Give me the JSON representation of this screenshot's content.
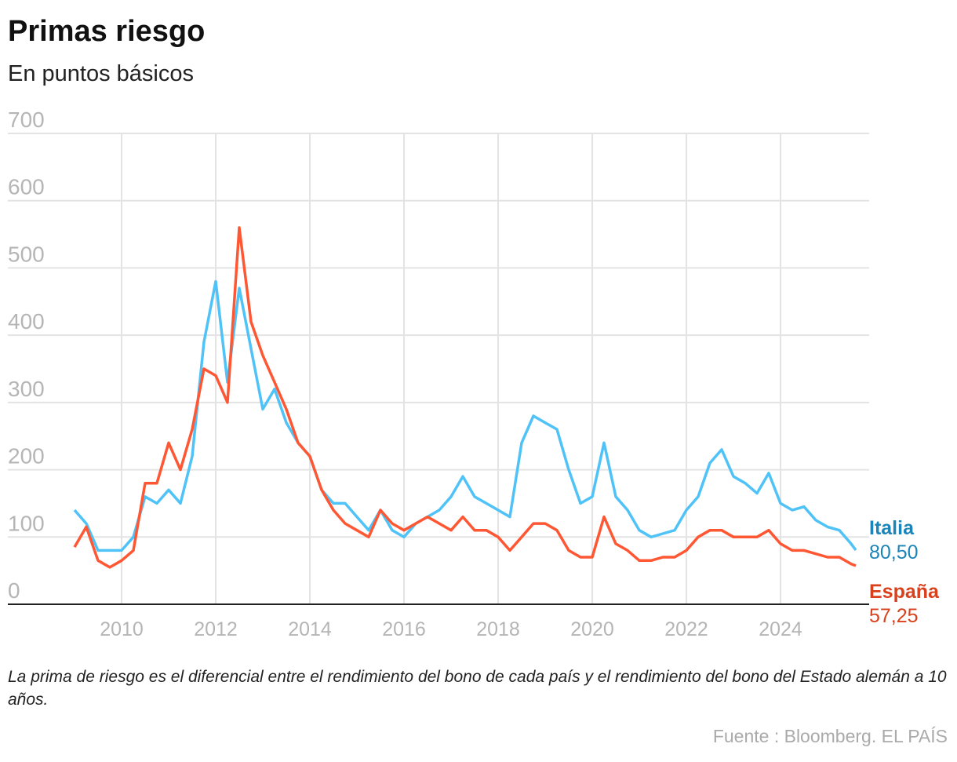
{
  "chart_data": {
    "type": "line",
    "title": "Primas riesgo",
    "subtitle": "En puntos básicos",
    "note": "La prima de riesgo es el diferencial entre el rendimiento del bono de cada país y el rendimiento del bono del Estado alemán a 10 años.",
    "source": "Fuente : Bloomberg. EL PAÍS",
    "x": [
      2009,
      2009.25,
      2009.5,
      2009.75,
      2010,
      2010.25,
      2010.5,
      2010.75,
      2011,
      2011.25,
      2011.5,
      2011.75,
      2012,
      2012.25,
      2012.5,
      2012.75,
      2013,
      2013.25,
      2013.5,
      2013.75,
      2014,
      2014.25,
      2014.5,
      2014.75,
      2015,
      2015.25,
      2015.5,
      2015.75,
      2016,
      2016.25,
      2016.5,
      2016.75,
      2017,
      2017.25,
      2017.5,
      2017.75,
      2018,
      2018.25,
      2018.5,
      2018.75,
      2019,
      2019.25,
      2019.5,
      2019.75,
      2020,
      2020.25,
      2020.5,
      2020.75,
      2021,
      2021.25,
      2021.5,
      2021.75,
      2022,
      2022.25,
      2022.5,
      2022.75,
      2023,
      2023.25,
      2023.5,
      2023.75,
      2024,
      2024.25,
      2024.5,
      2024.75,
      2025,
      2025.25,
      2025.5,
      2025.6
    ],
    "series": [
      {
        "name": "Italia",
        "color": "#4fc3f7",
        "label_color": "#1b84b8",
        "values": [
          140,
          120,
          80,
          80,
          80,
          100,
          160,
          150,
          170,
          150,
          220,
          390,
          480,
          330,
          470,
          380,
          290,
          320,
          270,
          240,
          220,
          170,
          150,
          150,
          130,
          110,
          140,
          110,
          100,
          120,
          130,
          140,
          160,
          190,
          160,
          150,
          140,
          130,
          240,
          280,
          270,
          260,
          200,
          150,
          160,
          240,
          160,
          140,
          110,
          100,
          105,
          110,
          140,
          160,
          210,
          230,
          190,
          180,
          165,
          195,
          150,
          140,
          145,
          125,
          115,
          110,
          90,
          80.5
        ],
        "value_labels": {
          "67": "80,50"
        }
      },
      {
        "name": "España",
        "color": "#ff5733",
        "label_color": "#d9401c",
        "values": [
          85,
          115,
          65,
          55,
          65,
          80,
          180,
          180,
          240,
          200,
          260,
          350,
          340,
          300,
          560,
          420,
          370,
          330,
          290,
          240,
          220,
          170,
          140,
          120,
          110,
          100,
          140,
          120,
          110,
          120,
          130,
          120,
          110,
          130,
          110,
          110,
          100,
          80,
          100,
          120,
          120,
          110,
          80,
          70,
          70,
          130,
          90,
          80,
          65,
          65,
          70,
          70,
          80,
          100,
          110,
          110,
          100,
          100,
          100,
          110,
          90,
          80,
          80,
          75,
          70,
          70,
          60,
          57.25
        ],
        "value_labels": {
          "67": "57,25"
        }
      }
    ],
    "xlim": [
      2007.583,
      2025.883
    ],
    "xticks": [
      2010,
      2012,
      2014,
      2016,
      2018,
      2020,
      2022,
      2024
    ],
    "ylim": [
      0,
      700
    ],
    "yticks": [
      0,
      100,
      200,
      300,
      400,
      500,
      600,
      700
    ],
    "grid": true
  }
}
